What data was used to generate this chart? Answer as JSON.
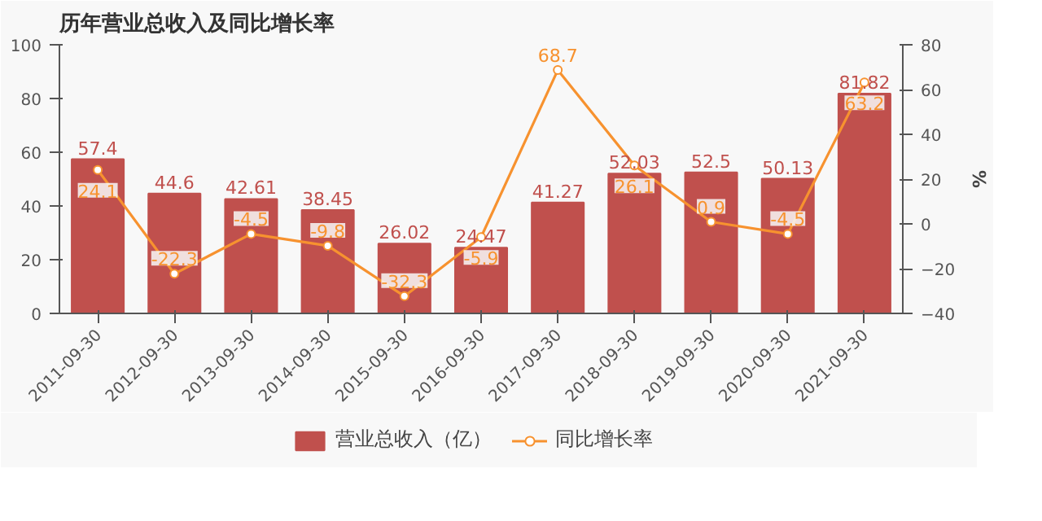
{
  "chart_data": {
    "type": "bar",
    "title": "历年营业总收入及同比增长率",
    "y2label": "%",
    "categories": [
      "2011-09-30",
      "2012-09-30",
      "2013-09-30",
      "2014-09-30",
      "2015-09-30",
      "2016-09-30",
      "2017-09-30",
      "2018-09-30",
      "2019-09-30",
      "2020-09-30",
      "2021-09-30"
    ],
    "series": [
      {
        "name": "营业总收入（亿）",
        "color": "#c0504d",
        "values": [
          57.4,
          44.6,
          42.61,
          38.45,
          26.02,
          24.47,
          41.27,
          52.03,
          52.5,
          50.13,
          81.82
        ]
      },
      {
        "name": "同比增长率",
        "type": "line",
        "axis": "y2",
        "color": "#f7922f",
        "values": [
          24.1,
          -22.3,
          -4.5,
          -9.8,
          -32.3,
          -5.9,
          68.7,
          26.1,
          0.9,
          -4.5,
          63.2
        ]
      }
    ],
    "ylim": [
      0,
      100
    ],
    "yticks": [
      0,
      20,
      40,
      60,
      80,
      100
    ],
    "y2lim": [
      -40,
      80
    ],
    "y2ticks": [
      -40,
      -20,
      0,
      20,
      40,
      60,
      80
    ],
    "data_labels": true,
    "grid": false,
    "legend": "bottom",
    "marker": "circle",
    "line_style": "solid"
  }
}
